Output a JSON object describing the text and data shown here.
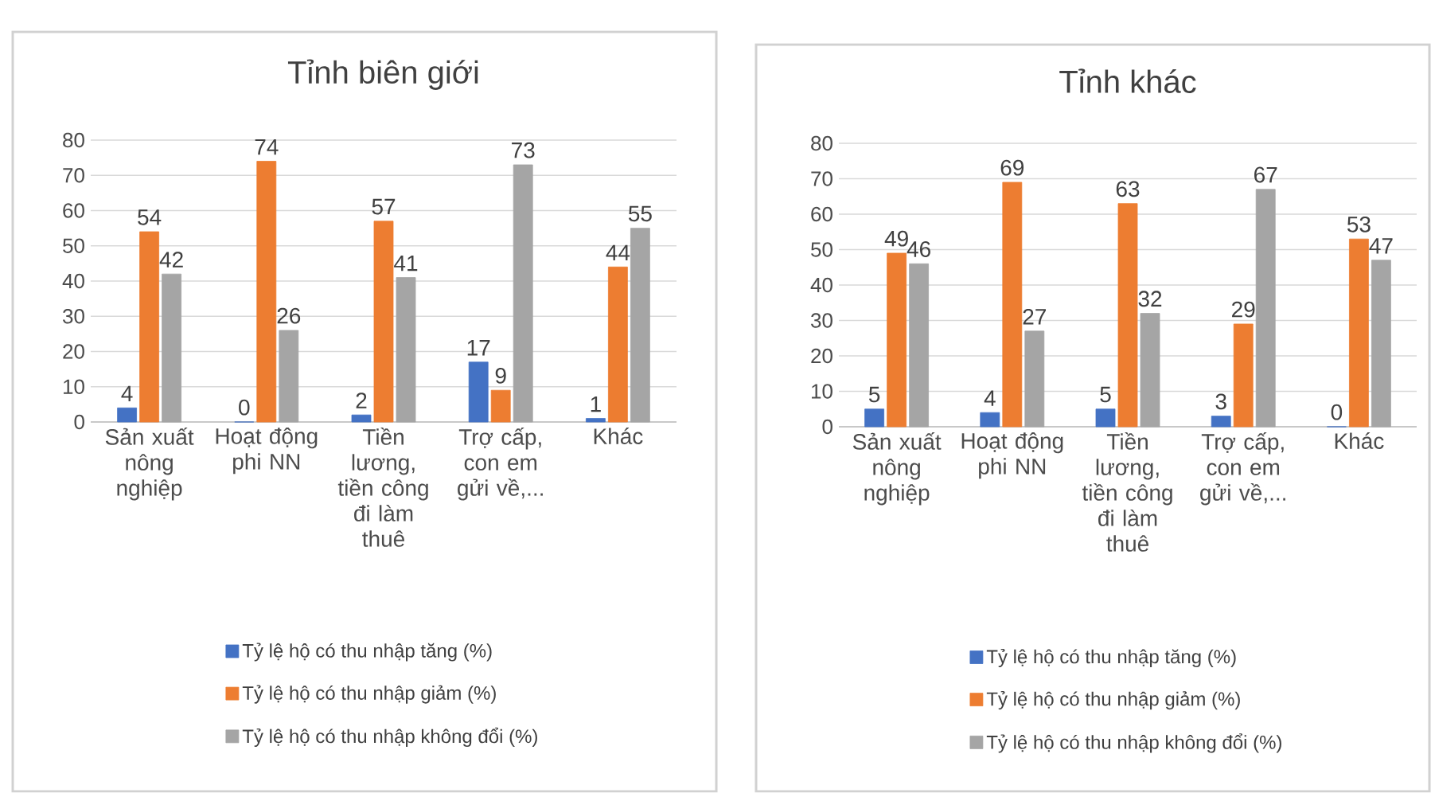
{
  "chart_data": [
    {
      "type": "bar",
      "title": "Tỉnh biên giới",
      "categories": [
        "Sản xuất nông nghiệp",
        "Hoạt động phi NN",
        "Tiền lương, tiền công đi làm thuê",
        "Trợ cấp, con em gửi về,...",
        "Khác"
      ],
      "series": [
        {
          "name": "Tỷ lệ hộ có thu nhập tăng (%)",
          "color": "#4472c4",
          "values": [
            4,
            0,
            2,
            17,
            1
          ]
        },
        {
          "name": "Tỷ lệ hộ có thu nhập giảm (%)",
          "color": "#ed7d31",
          "values": [
            54,
            74,
            57,
            9,
            44
          ]
        },
        {
          "name": "Tỷ lệ hộ có thu nhập không đổi (%)",
          "color": "#a5a5a5",
          "values": [
            42,
            26,
            41,
            73,
            55
          ]
        }
      ],
      "ylim": [
        0,
        80
      ],
      "yticks": [
        0,
        10,
        20,
        30,
        40,
        50,
        60,
        70,
        80
      ],
      "grid": "y",
      "legend": "bottom",
      "data_labels": true
    },
    {
      "type": "bar",
      "title": "Tỉnh khác",
      "categories": [
        "Sản xuất nông nghiệp",
        "Hoạt động phi NN",
        "Tiền lương, tiền công đi làm thuê",
        "Trợ cấp, con em gửi về,...",
        "Khác"
      ],
      "series": [
        {
          "name": "Tỷ lệ hộ có thu nhập tăng (%)",
          "color": "#4472c4",
          "values": [
            5,
            4,
            5,
            3,
            0
          ]
        },
        {
          "name": "Tỷ lệ hộ có thu nhập giảm (%)",
          "color": "#ed7d31",
          "values": [
            49,
            69,
            63,
            29,
            53
          ]
        },
        {
          "name": "Tỷ lệ hộ có thu nhập không đổi (%)",
          "color": "#a5a5a5",
          "values": [
            46,
            27,
            32,
            67,
            47
          ]
        }
      ],
      "ylim": [
        0,
        80
      ],
      "yticks": [
        0,
        10,
        20,
        30,
        40,
        50,
        60,
        70,
        80
      ],
      "grid": "y",
      "legend": "bottom",
      "data_labels": true
    }
  ]
}
